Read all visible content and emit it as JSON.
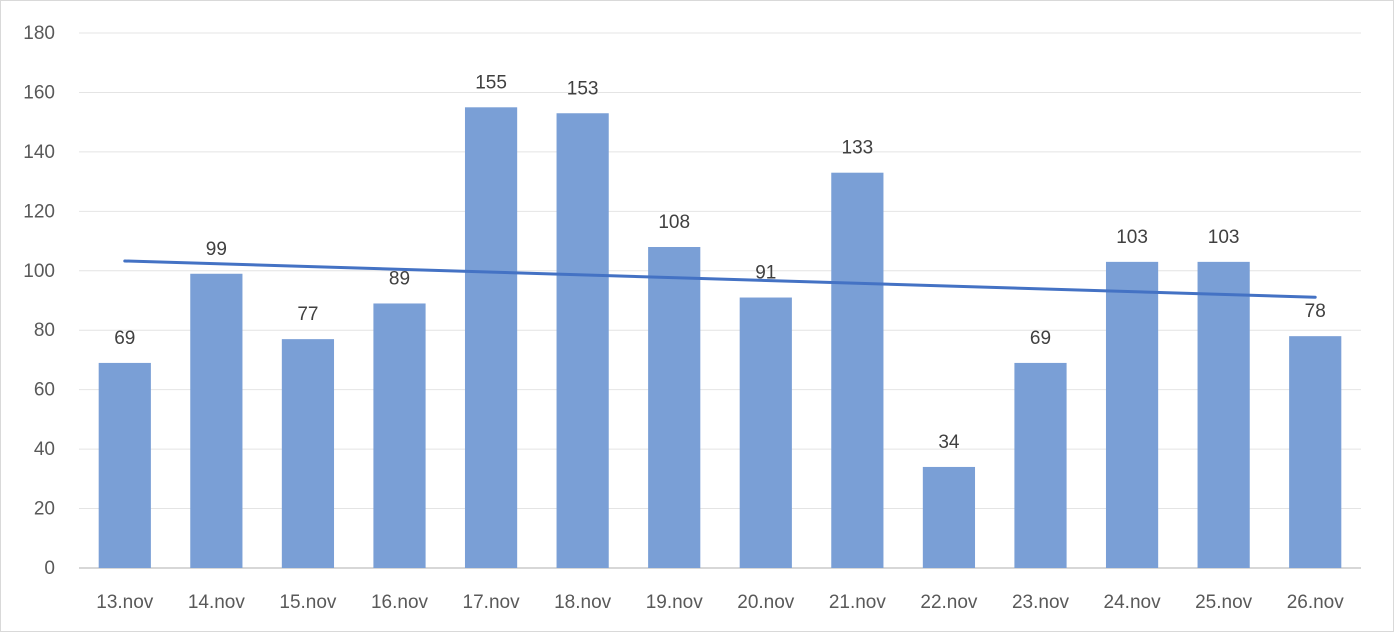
{
  "chart_data": {
    "type": "bar",
    "categories": [
      "13.nov",
      "14.nov",
      "15.nov",
      "16.nov",
      "17.nov",
      "18.nov",
      "19.nov",
      "20.nov",
      "21.nov",
      "22.nov",
      "23.nov",
      "24.nov",
      "25.nov",
      "26.nov"
    ],
    "series": [
      {
        "values": [
          69,
          99,
          77,
          89,
          155,
          153,
          108,
          91,
          133,
          34,
          69,
          103,
          103,
          78
        ],
        "color": "#7a9fd6"
      }
    ],
    "trendline": {
      "type": "linear",
      "start": 103.3,
      "end": 91.1,
      "color": "#4472c4"
    },
    "title": "",
    "xlabel": "",
    "ylabel": "",
    "ylim": [
      0,
      180
    ],
    "yticks": [
      0,
      20,
      40,
      60,
      80,
      100,
      120,
      140,
      160,
      180
    ],
    "grid": true,
    "legend": "none",
    "data_labels": true
  }
}
